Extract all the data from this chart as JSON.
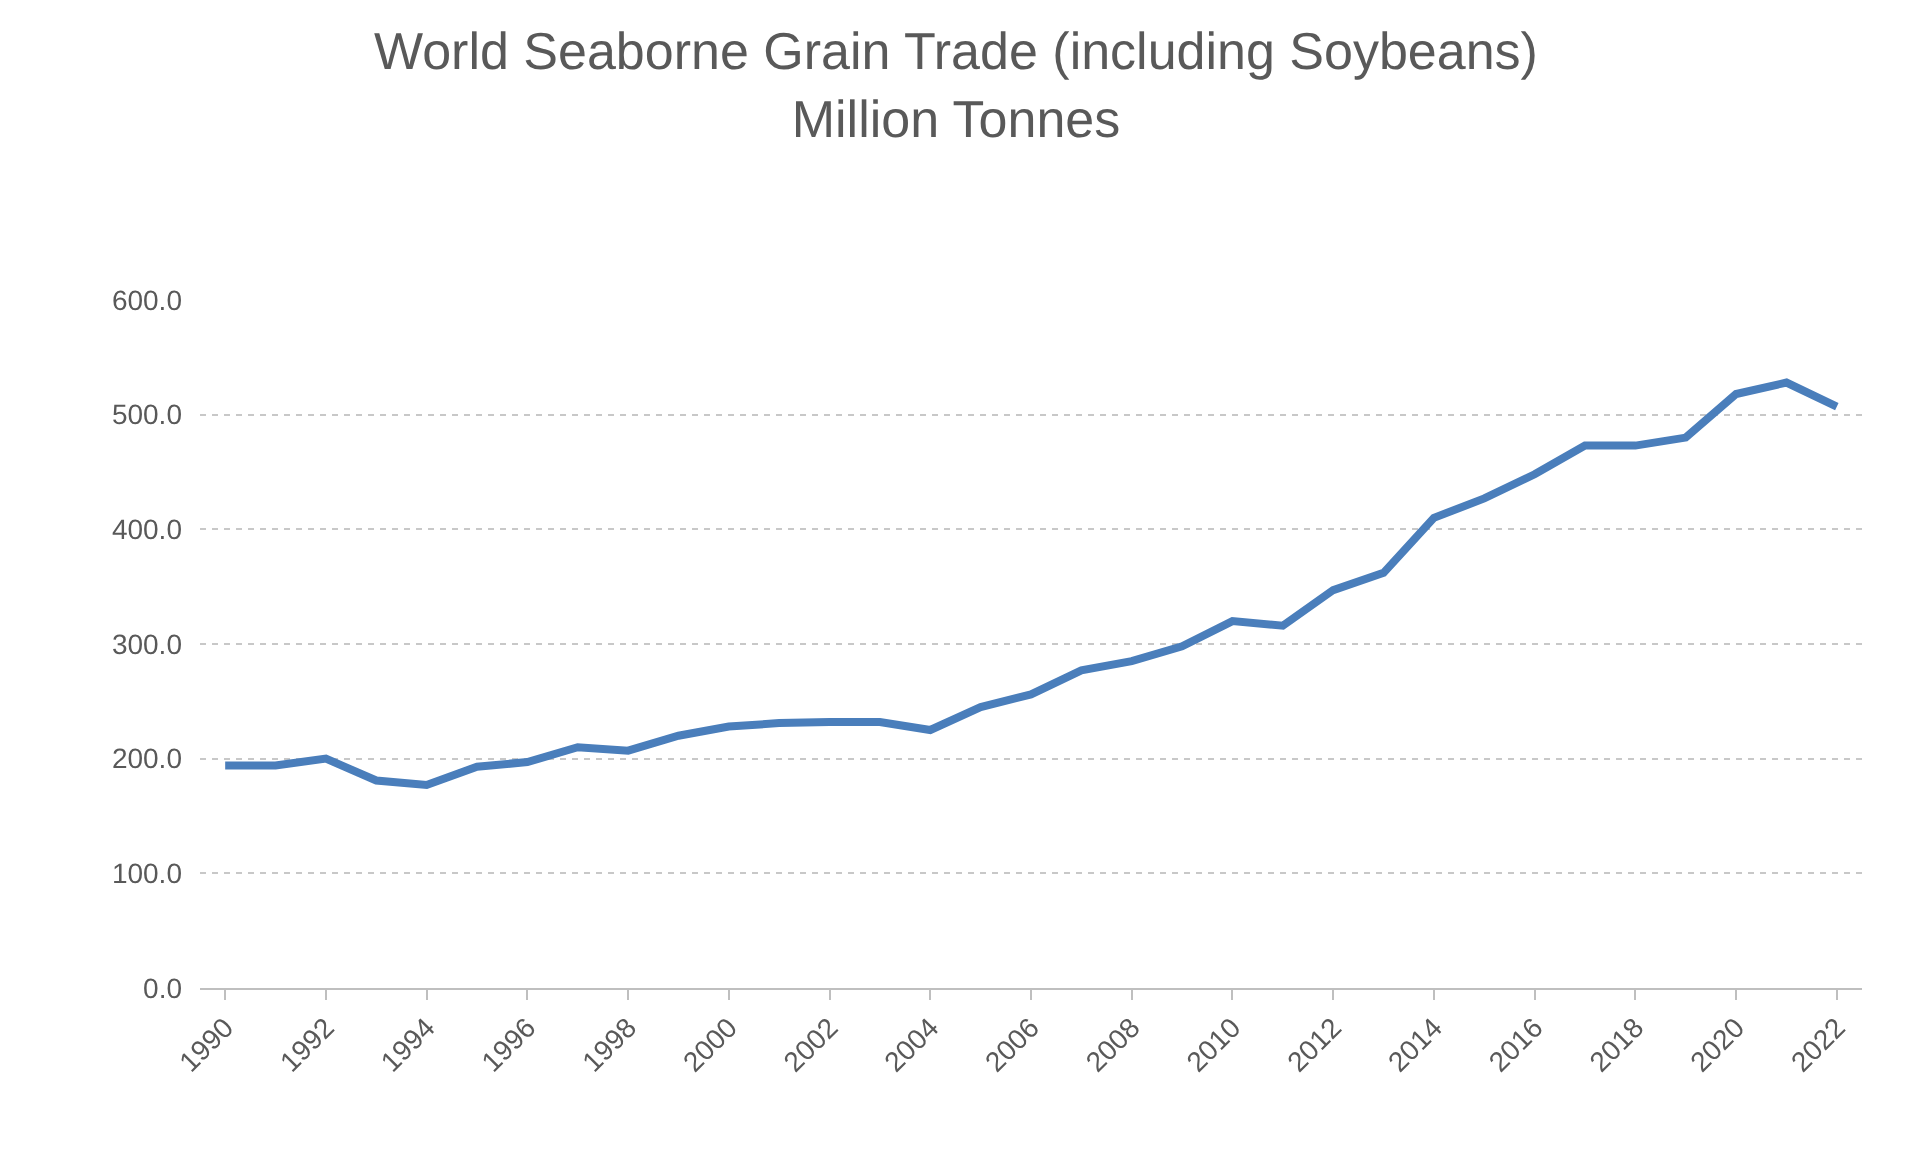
{
  "chart_data": {
    "type": "line",
    "title": "World Seaborne Grain Trade (including Soybeans)\nMillion Tonnes",
    "categories": [
      "1990",
      null,
      "1992",
      null,
      "1994",
      null,
      "1996",
      null,
      "1998",
      null,
      "2000",
      null,
      "2002",
      null,
      "2004",
      null,
      "2006",
      null,
      "2008",
      null,
      "2010",
      null,
      "2012",
      null,
      "2014",
      null,
      "2016",
      null,
      "2018",
      null,
      "2020",
      null,
      "2022"
    ],
    "series": [
      {
        "color": "#4a7ebb",
        "values": [
          194,
          194,
          200,
          181,
          177,
          193,
          197,
          210,
          207,
          220,
          228,
          231,
          232,
          232,
          225,
          245,
          256,
          277,
          285,
          298,
          320,
          316,
          347,
          362,
          410,
          427,
          448,
          473,
          473,
          480,
          518,
          528,
          507
        ]
      }
    ],
    "ylim": [
      0,
      600
    ],
    "yticks": [
      {
        "value": 0,
        "label": "0.0"
      },
      {
        "value": 100,
        "label": "100.0"
      },
      {
        "value": 200,
        "label": "200.0"
      },
      {
        "value": 300,
        "label": "300.0"
      },
      {
        "value": 400,
        "label": "400.0"
      },
      {
        "value": 500,
        "label": "500.0"
      },
      {
        "value": 600,
        "label": "600.0"
      }
    ],
    "grid": "y",
    "marker": "none",
    "line_style": "solid"
  }
}
